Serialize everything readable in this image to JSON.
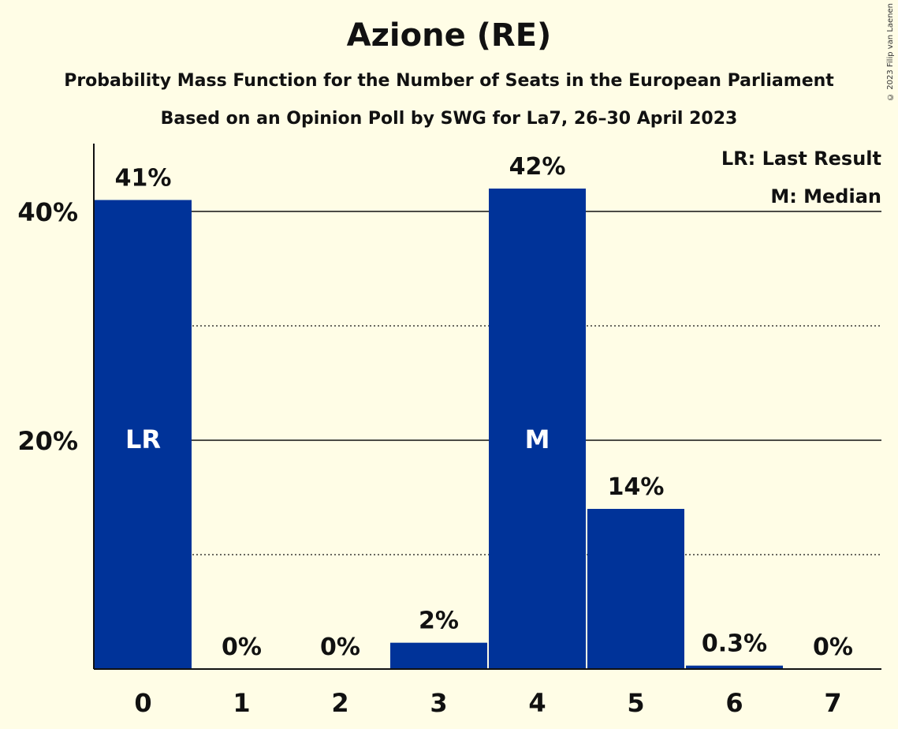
{
  "header": {
    "title": "Azione (RE)",
    "subtitle": "Probability Mass Function for the Number of Seats in the European Parliament",
    "subtitle2": "Based on an Opinion Poll by SWG for La7, 26–30 April 2023",
    "copyright": "© 2023 Filip van Laenen"
  },
  "legend": {
    "last_result": "LR: Last Result",
    "median": "M: Median"
  },
  "colors": {
    "bar": "#003399",
    "background": "#fffde6"
  },
  "chart_data": {
    "type": "bar",
    "title": "Azione (RE)",
    "xlabel": "",
    "ylabel": "",
    "categories": [
      "0",
      "1",
      "2",
      "3",
      "4",
      "5",
      "6",
      "7"
    ],
    "values": [
      41,
      0,
      0,
      2.3,
      42,
      14,
      0.3,
      0
    ],
    "value_labels": [
      "41%",
      "0%",
      "0%",
      "2%",
      "42%",
      "14%",
      "0.3%",
      "0%"
    ],
    "bar_markers": {
      "0": "LR",
      "4": "M"
    },
    "yticks": [
      20,
      40
    ],
    "ytick_labels": [
      "20%",
      "40%"
    ],
    "minor_gridlines": [
      10,
      30
    ],
    "ylim": [
      0,
      46
    ],
    "grid": true,
    "legend_position": "top-right"
  }
}
